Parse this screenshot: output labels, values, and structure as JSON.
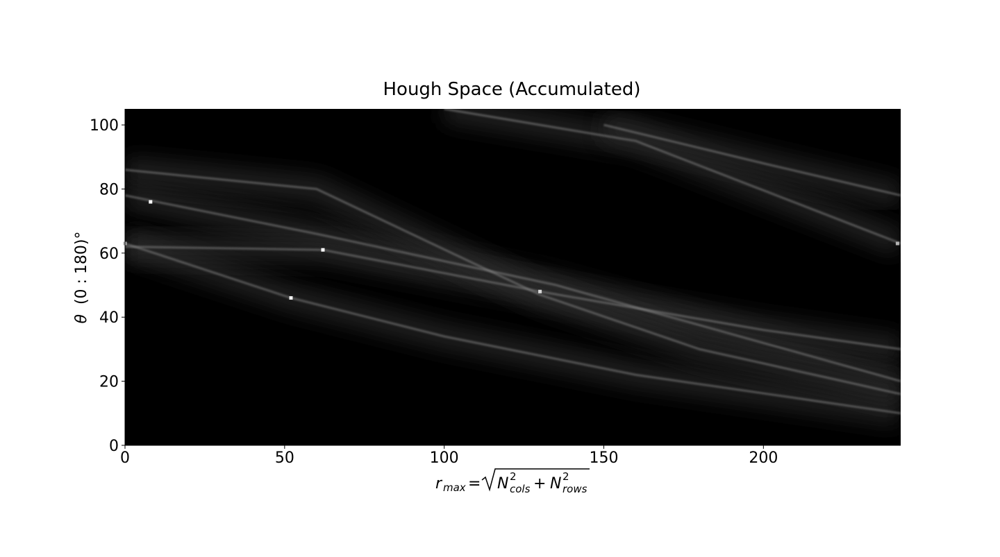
{
  "chart_data": {
    "type": "heatmap",
    "title": "Hough Space (Accumulated)",
    "xlabel": "r_max = √(N²_cols + N²_rows)",
    "ylabel": "θ  (0:180)°",
    "xlim": [
      0,
      243
    ],
    "ylim": [
      0,
      105
    ],
    "xticks": [
      0,
      50,
      100,
      150,
      200
    ],
    "yticks": [
      0,
      20,
      40,
      60,
      80,
      100
    ],
    "colormap": "gray",
    "background_color": "#000000",
    "bright_ridges": [
      {
        "name": "ridge-1",
        "points": [
          [
            0,
            78
          ],
          [
            10,
            76
          ],
          [
            60,
            66
          ],
          [
            135,
            50
          ],
          [
            243,
            20
          ]
        ]
      },
      {
        "name": "ridge-2",
        "points": [
          [
            0,
            63
          ],
          [
            52,
            46
          ],
          [
            100,
            34
          ],
          [
            160,
            22
          ],
          [
            243,
            10
          ]
        ]
      },
      {
        "name": "ridge-3",
        "points": [
          [
            0,
            62
          ],
          [
            62,
            61
          ],
          [
            130,
            48
          ],
          [
            200,
            36
          ],
          [
            243,
            30
          ]
        ]
      },
      {
        "name": "ridge-4",
        "points": [
          [
            0,
            86
          ],
          [
            60,
            80
          ],
          [
            130,
            47
          ],
          [
            180,
            30
          ],
          [
            243,
            16
          ]
        ]
      },
      {
        "name": "ridge-5",
        "points": [
          [
            100,
            105
          ],
          [
            160,
            95
          ],
          [
            243,
            63
          ]
        ]
      },
      {
        "name": "ridge-6",
        "points": [
          [
            150,
            100
          ],
          [
            200,
            88
          ],
          [
            243,
            78
          ]
        ]
      }
    ],
    "peaks": [
      {
        "r": 8,
        "theta": 76,
        "intensity": 1.0
      },
      {
        "r": 62,
        "theta": 61,
        "intensity": 1.0
      },
      {
        "r": 52,
        "theta": 46,
        "intensity": 0.95
      },
      {
        "r": 130,
        "theta": 48,
        "intensity": 0.85
      },
      {
        "r": 0,
        "theta": 63,
        "intensity": 0.7
      },
      {
        "r": 242,
        "theta": 63,
        "intensity": 0.7
      }
    ]
  }
}
